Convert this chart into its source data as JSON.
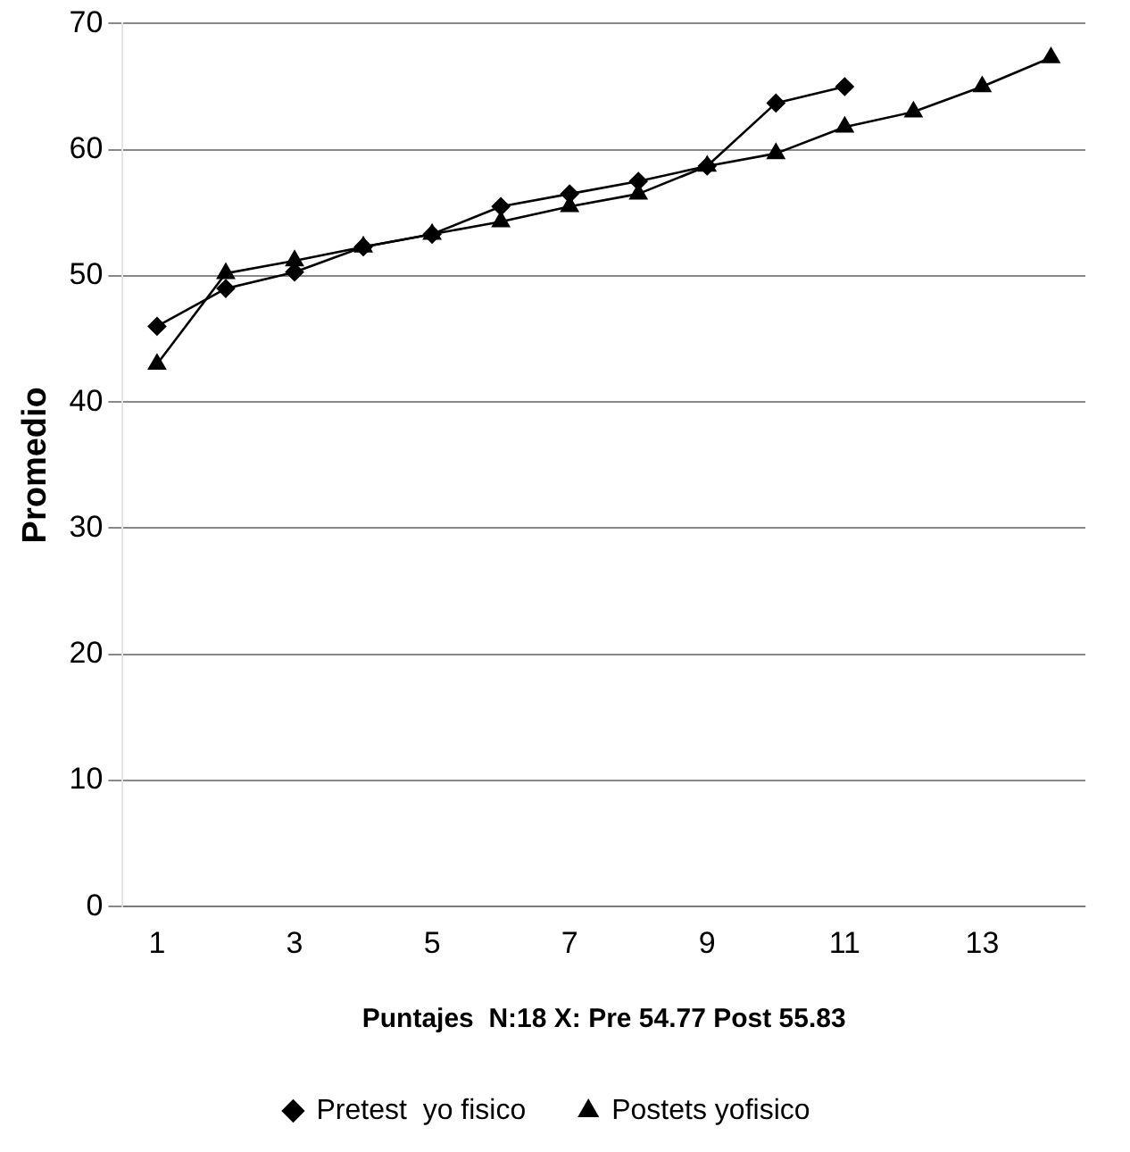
{
  "chart_data": {
    "type": "line",
    "xlabel": "Puntajes  N:18 X: Pre 54.77 Post 55.83",
    "ylabel": "Promedio",
    "x": [
      1,
      2,
      3,
      4,
      5,
      6,
      7,
      8,
      9,
      10,
      11,
      12,
      13,
      14
    ],
    "series": [
      {
        "name": "Pretest  yo fisico",
        "color": "#000000",
        "marker": "diamond",
        "values": [
          46,
          49,
          50.3,
          52.3,
          53.3,
          55.5,
          56.5,
          57.5,
          58.7,
          63.7,
          65,
          null,
          null,
          null
        ]
      },
      {
        "name": "Postets yofisico",
        "color": "#000000",
        "marker": "triangle",
        "values": [
          43,
          50.2,
          51.2,
          52.3,
          53.3,
          54.3,
          55.5,
          56.5,
          58.7,
          59.7,
          61.8,
          63,
          65,
          67.3
        ]
      }
    ],
    "xlim": [
      0.5,
      14.5
    ],
    "xticks": [
      1,
      3,
      5,
      7,
      9,
      11,
      13
    ],
    "ylim": [
      0,
      70
    ],
    "yticks": [
      0,
      10,
      20,
      30,
      40,
      50,
      60,
      70
    ],
    "grid": "y",
    "legend": "bottom"
  }
}
